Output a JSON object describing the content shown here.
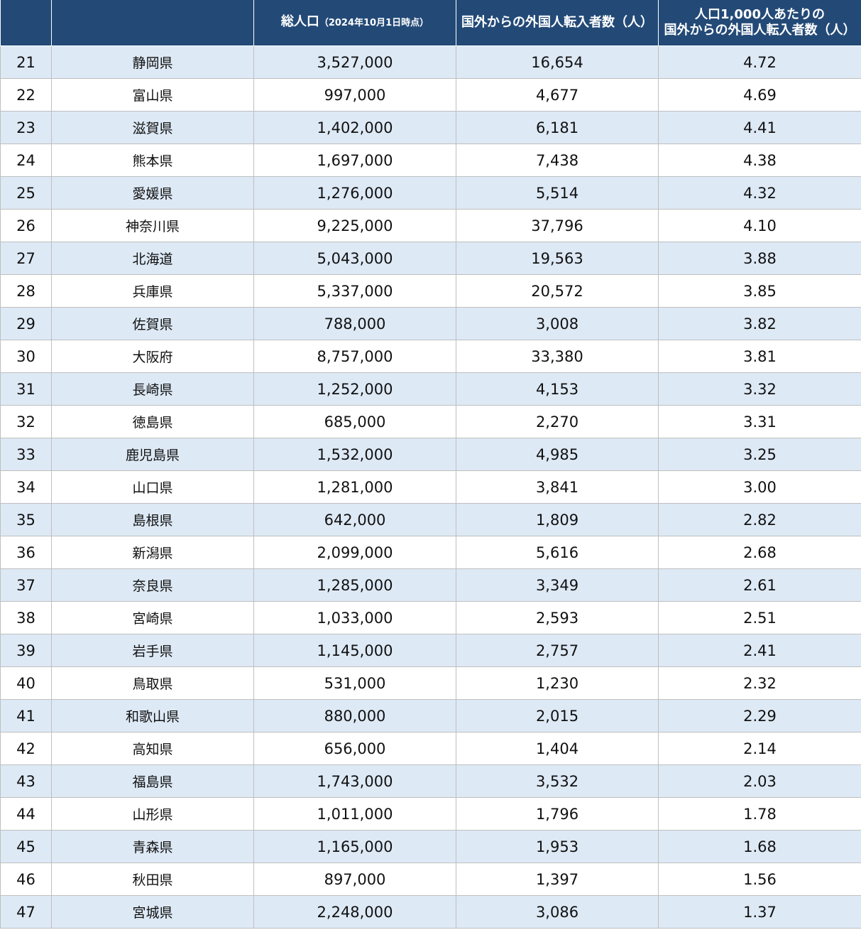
{
  "header": {
    "population": {
      "main": "総人口",
      "note": "（2024年10月1日時点）"
    },
    "inflow": "国外からの外国人転入者数（人）",
    "per1000": {
      "line1": "人口1,000人あたりの",
      "line2": "国外からの外国人転入者数（人）"
    }
  },
  "table": {
    "rows": [
      [
        "21",
        "静岡県",
        "3,527,000",
        "16,654",
        "4.72"
      ],
      [
        "22",
        "富山県",
        "997,000",
        "4,677",
        "4.69"
      ],
      [
        "23",
        "滋賀県",
        "1,402,000",
        "6,181",
        "4.41"
      ],
      [
        "24",
        "熊本県",
        "1,697,000",
        "7,438",
        "4.38"
      ],
      [
        "25",
        "愛媛県",
        "1,276,000",
        "5,514",
        "4.32"
      ],
      [
        "26",
        "神奈川県",
        "9,225,000",
        "37,796",
        "4.10"
      ],
      [
        "27",
        "北海道",
        "5,043,000",
        "19,563",
        "3.88"
      ],
      [
        "28",
        "兵庫県",
        "5,337,000",
        "20,572",
        "3.85"
      ],
      [
        "29",
        "佐賀県",
        "788,000",
        "3,008",
        "3.82"
      ],
      [
        "30",
        "大阪府",
        "8,757,000",
        "33,380",
        "3.81"
      ],
      [
        "31",
        "長崎県",
        "1,252,000",
        "4,153",
        "3.32"
      ],
      [
        "32",
        "徳島県",
        "685,000",
        "2,270",
        "3.31"
      ],
      [
        "33",
        "鹿児島県",
        "1,532,000",
        "4,985",
        "3.25"
      ],
      [
        "34",
        "山口県",
        "1,281,000",
        "3,841",
        "3.00"
      ],
      [
        "35",
        "島根県",
        "642,000",
        "1,809",
        "2.82"
      ],
      [
        "36",
        "新潟県",
        "2,099,000",
        "5,616",
        "2.68"
      ],
      [
        "37",
        "奈良県",
        "1,285,000",
        "3,349",
        "2.61"
      ],
      [
        "38",
        "宮崎県",
        "1,033,000",
        "2,593",
        "2.51"
      ],
      [
        "39",
        "岩手県",
        "1,145,000",
        "2,757",
        "2.41"
      ],
      [
        "40",
        "鳥取県",
        "531,000",
        "1,230",
        "2.32"
      ],
      [
        "41",
        "和歌山県",
        "880,000",
        "2,015",
        "2.29"
      ],
      [
        "42",
        "高知県",
        "656,000",
        "1,404",
        "2.14"
      ],
      [
        "43",
        "福島県",
        "1,743,000",
        "3,532",
        "2.03"
      ],
      [
        "44",
        "山形県",
        "1,011,000",
        "1,796",
        "1.78"
      ],
      [
        "45",
        "青森県",
        "1,165,000",
        "1,953",
        "1.68"
      ],
      [
        "46",
        "秋田県",
        "897,000",
        "1,397",
        "1.56"
      ],
      [
        "47",
        "宮城県",
        "2,248,000",
        "3,086",
        "1.37"
      ]
    ]
  }
}
